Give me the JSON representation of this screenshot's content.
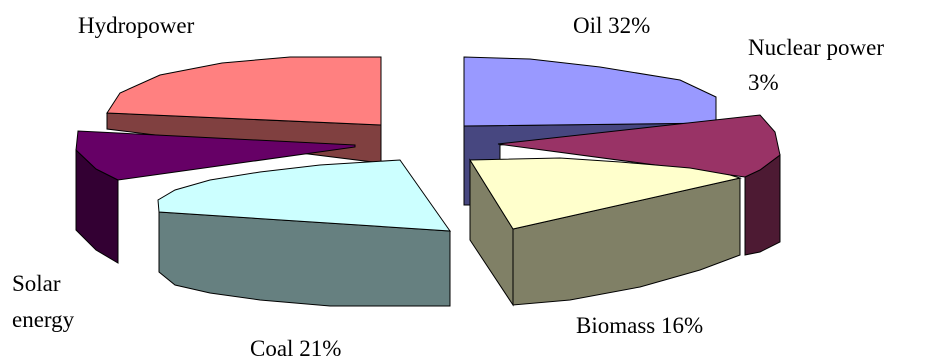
{
  "chart_data": {
    "type": "pie",
    "style": "3d-exploded",
    "title": "",
    "slices": [
      {
        "key": "oil",
        "label_lines": [
          "Oil 32%"
        ],
        "value": 32,
        "colors": {
          "top": "#9999ff",
          "side": "#474780"
        }
      },
      {
        "key": "nuclear",
        "label_lines": [
          "Nuclear power",
          "3%"
        ],
        "value": 3,
        "colors": {
          "top": "#993366",
          "side": "#4d1a33"
        }
      },
      {
        "key": "biomass",
        "label_lines": [
          "Biomass 16%"
        ],
        "value": 16,
        "colors": {
          "top": "#ffffcc",
          "side": "#808066"
        }
      },
      {
        "key": "coal",
        "label_lines": [
          "Coal 21%"
        ],
        "value": 21,
        "colors": {
          "top": "#ccffff",
          "side": "#668080"
        }
      },
      {
        "key": "solar",
        "label_lines": [
          "Solar",
          "energy"
        ],
        "value": null,
        "colors": {
          "top": "#660066",
          "side": "#330033"
        }
      },
      {
        "key": "hydro",
        "label_lines": [
          "Hydropower"
        ],
        "value": null,
        "colors": {
          "top": "#ff8080",
          "side": "#804040"
        }
      }
    ]
  }
}
